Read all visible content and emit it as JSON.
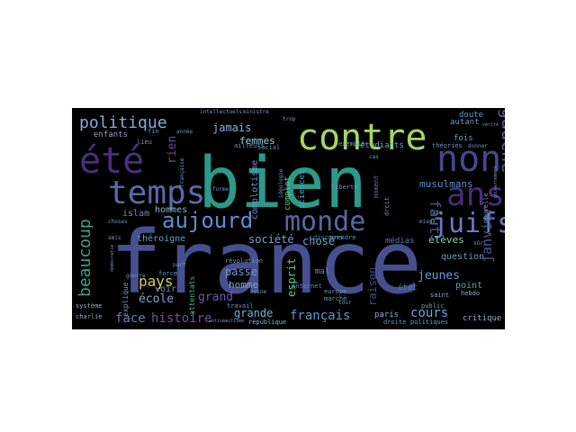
{
  "wordcloud": {
    "background": "#000000",
    "words": [
      {
        "text": "france",
        "color": "#46508f"
      },
      {
        "text": "bien",
        "color": "#2a9a8a"
      },
      {
        "text": "contre",
        "color": "#a6d65c"
      },
      {
        "text": "été",
        "color": "#4b2d7d"
      },
      {
        "text": "non",
        "color": "#434a88"
      },
      {
        "text": "temps",
        "color": "#5a6aa6"
      },
      {
        "text": "ans",
        "color": "#4a2c7a"
      },
      {
        "text": "monde",
        "color": "#5867a4"
      },
      {
        "text": "aujourd",
        "color": "#5c8fd0"
      },
      {
        "text": "juifs",
        "color": "#6a7bbf"
      },
      {
        "text": "politique",
        "color": "#8ea8d6"
      },
      {
        "text": "gauche",
        "color": "#4e5f9a"
      },
      {
        "text": "beaucoup",
        "color": "#3ea28c"
      },
      {
        "text": "faut",
        "color": "#4a5a95"
      },
      {
        "text": "rien",
        "color": "#6f4a95"
      },
      {
        "text": "pays",
        "color": "#d6cf5a"
      },
      {
        "text": "histoire",
        "color": "#7a4aa0"
      },
      {
        "text": "face",
        "color": "#6a7ab8"
      },
      {
        "text": "français",
        "color": "#5f96c8"
      },
      {
        "text": "cours",
        "color": "#6aa8d8"
      },
      {
        "text": "janvier",
        "color": "#4a5a95"
      },
      {
        "text": "jeunes",
        "color": "#6a9ad0"
      },
      {
        "text": "raison",
        "color": "#3e4d86"
      },
      {
        "text": "musulmans",
        "color": "#5e8ec8"
      },
      {
        "text": "jamais",
        "color": "#8ab0d8"
      },
      {
        "text": "femmes",
        "color": "#9ad0e0"
      },
      {
        "text": "société",
        "color": "#6fa4cc"
      },
      {
        "text": "chose",
        "color": "#6aa0d0"
      },
      {
        "text": "école",
        "color": "#8aa0d8"
      },
      {
        "text": "grand",
        "color": "#6a5aa8"
      },
      {
        "text": "grande",
        "color": "#6fb2d0"
      },
      {
        "text": "esprit",
        "color": "#4ad08a"
      },
      {
        "text": "sciences",
        "color": "#4aa8c8"
      },
      {
        "text": "complotisme",
        "color": "#7a8ac8"
      },
      {
        "text": "complot",
        "color": "#5ac88a"
      },
      {
        "text": "passe",
        "color": "#6a9ad0"
      },
      {
        "text": "homme",
        "color": "#8aa0c8"
      },
      {
        "text": "hommes",
        "color": "#8ab0d0"
      },
      {
        "text": "islam",
        "color": "#6a8ac0"
      },
      {
        "text": "théroigne",
        "color": "#6aa0c8"
      },
      {
        "text": "voir",
        "color": "#6a9ac0"
      },
      {
        "text": "élèves",
        "color": "#8ad0b8"
      },
      {
        "text": "question",
        "color": "#6a9ac0"
      },
      {
        "text": "point",
        "color": "#6a9ac0"
      },
      {
        "text": "paris",
        "color": "#8ab0c8"
      },
      {
        "text": "critique",
        "color": "#8ab0c8"
      },
      {
        "text": "médias",
        "color": "#5a78b0"
      },
      {
        "text": "étudiants",
        "color": "#6aa8c8"
      },
      {
        "text": "enfants",
        "color": "#8aa0c8"
      },
      {
        "text": "fois",
        "color": "#6a9ac0"
      },
      {
        "text": "autant",
        "color": "#6a9ac0"
      },
      {
        "text": "doute",
        "color": "#6a9ac0"
      },
      {
        "text": "état",
        "color": "#4a7ab0"
      },
      {
        "text": "mal",
        "color": "#6a8ac0"
      },
      {
        "text": "attentats",
        "color": "#4ab88a"
      },
      {
        "text": "explique",
        "color": "#6a9ac0"
      },
      {
        "text": "révolution",
        "color": "#6a9ac0"
      },
      {
        "text": "internet",
        "color": "#5a8ab8"
      },
      {
        "text": "europe",
        "color": "#6a9ac0"
      },
      {
        "text": "marché",
        "color": "#6a9ac0"
      },
      {
        "text": "liberté",
        "color": "#6a9ac0"
      },
      {
        "text": "moment",
        "color": "#5a7ab0"
      },
      {
        "text": "exemple",
        "color": "#6a9ac0"
      },
      {
        "text": "théories",
        "color": "#6a9ac0"
      },
      {
        "text": "social",
        "color": "#6a9ac0"
      },
      {
        "text": "ailleurs",
        "color": "#6a9ac0"
      },
      {
        "text": "discours",
        "color": "#5a8ab0"
      },
      {
        "text": "république",
        "color": "#8ab0c8"
      },
      {
        "text": "travail",
        "color": "#6a9ac0"
      },
      {
        "text": "force",
        "color": "#6a9ac0"
      },
      {
        "text": "nouvelle",
        "color": "#6a9ac0"
      },
      {
        "text": "saint",
        "color": "#8ab0c8"
      },
      {
        "text": "public",
        "color": "#6a9ac0"
      },
      {
        "text": "hebdo",
        "color": "#8ab0c8"
      },
      {
        "text": "système",
        "color": "#8ab0c8"
      },
      {
        "text": "charlie",
        "color": "#8ab0c8"
      },
      {
        "text": "droite",
        "color": "#6a9ac0"
      },
      {
        "text": "politiques",
        "color": "#6a9ac0"
      },
      {
        "text": "prendre",
        "color": "#6a9ac0"
      },
      {
        "text": "drcit",
        "color": "#6a9ac0"
      },
      {
        "text": "lieu",
        "color": "#6a9ac0"
      },
      {
        "text": "fin",
        "color": "#6a9ac0"
      },
      {
        "text": "année",
        "color": "#6a9ac0"
      },
      {
        "text": "intellectuels",
        "color": "#6a9ac0"
      },
      {
        "text": "ministre",
        "color": "#6a9ac0"
      },
      {
        "text": "trop",
        "color": "#6a9ac0"
      },
      {
        "text": "idéologie",
        "color": "#6a9ac0"
      },
      {
        "text": "forme",
        "color": "#6a9ac0"
      },
      {
        "text": "guerre",
        "color": "#6a9ac0"
      },
      {
        "text": "française",
        "color": "#6a9ac0"
      },
      {
        "text": "choses",
        "color": "#6a9ac0"
      },
      {
        "text": "vie",
        "color": "#6a9ac0"
      },
      {
        "text": "sûr",
        "color": "#6a9ac0"
      },
      {
        "text": "haine",
        "color": "#6a9ac0"
      },
      {
        "text": "antisémitisme",
        "color": "#6a9ac0"
      },
      {
        "text": "cas",
        "color": "#6a9ac0"
      },
      {
        "text": "donner",
        "color": "#6a9ac0"
      },
      {
        "text": "vérité",
        "color": "#6a9ac0"
      },
      {
        "text": "gouvernement",
        "color": "#6a9ac0"
      },
      {
        "text": "mieux",
        "color": "#6a9ac0"
      },
      {
        "text": "tour",
        "color": "#6a9ac0"
      },
      {
        "text": "amis",
        "color": "#6a9ac0"
      },
      {
        "text": "démocratie",
        "color": "#6a9ac0"
      },
      {
        "text": "part",
        "color": "#6a9ac0"
      }
    ]
  }
}
